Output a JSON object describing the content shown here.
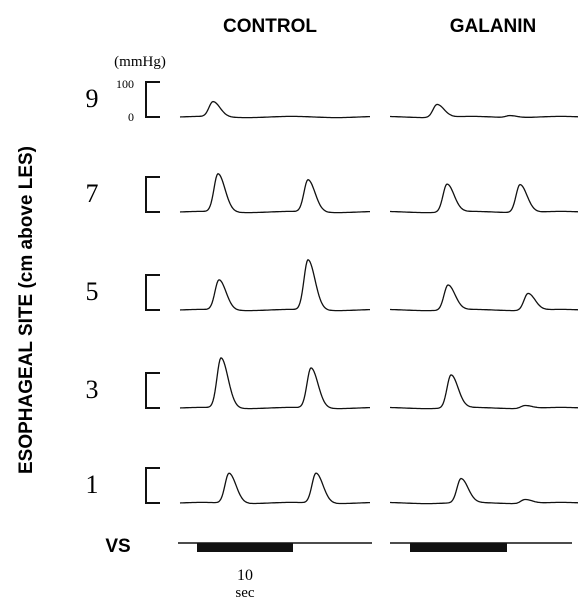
{
  "columns": [
    "CONTROL",
    "GALANIN"
  ],
  "y_label": "ESOPHAGEAL SITE (cm above LES)",
  "scale": {
    "unit": "(mmHg)",
    "top": "100",
    "bottom": "0"
  },
  "rows": [
    "9",
    "7",
    "5",
    "3",
    "1"
  ],
  "vs_label": "VS",
  "time_scale": {
    "value": "10",
    "unit": "sec"
  }
}
